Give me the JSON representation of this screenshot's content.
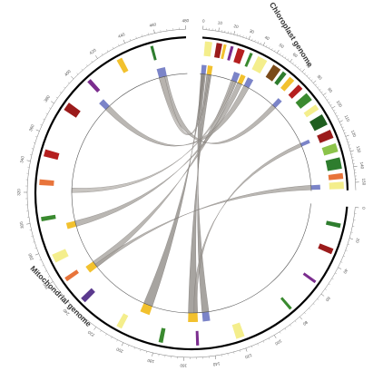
{
  "chart_data": {
    "type": "circos",
    "segments": [
      {
        "name": "Chloroplast genome",
        "length": 155,
        "color": "#000000",
        "ticks": [
          0,
          10,
          20,
          30,
          40,
          50,
          60,
          70,
          80,
          90,
          100,
          110,
          120,
          130,
          140,
          150
        ]
      },
      {
        "name": "Mitochondrial genome",
        "length": 480,
        "color": "#000000",
        "ticks": [
          0,
          20,
          40,
          60,
          80,
          100,
          120,
          140,
          160,
          180,
          200,
          220,
          240,
          260,
          280,
          300,
          320,
          340,
          360,
          380,
          400,
          420,
          440,
          460,
          480
        ]
      }
    ],
    "features": [
      {
        "segment": 0,
        "start": 2,
        "end": 7,
        "track": "outer",
        "color": "#f4ee8c"
      },
      {
        "segment": 0,
        "start": 10,
        "end": 14,
        "track": "outer",
        "color": "#9b1b1b"
      },
      {
        "segment": 0,
        "start": 15,
        "end": 17,
        "track": "outer",
        "color": "#f2c12e"
      },
      {
        "segment": 0,
        "start": 20,
        "end": 22,
        "track": "outer",
        "color": "#7b2d8e"
      },
      {
        "segment": 0,
        "start": 25,
        "end": 30,
        "track": "outer",
        "color": "#b51f1f"
      },
      {
        "segment": 0,
        "start": 34,
        "end": 36,
        "track": "outer",
        "color": "#3a8a2f"
      },
      {
        "segment": 0,
        "start": 40,
        "end": 47,
        "track": "outer",
        "color": "#f4ee8c"
      },
      {
        "segment": 0,
        "start": 52,
        "end": 58,
        "track": "outer",
        "color": "#7a4a18"
      },
      {
        "segment": 0,
        "start": 60,
        "end": 63,
        "track": "outer",
        "color": "#2e7d2e"
      },
      {
        "segment": 0,
        "start": 66,
        "end": 70,
        "track": "outer",
        "color": "#f2c12e"
      },
      {
        "segment": 0,
        "start": 74,
        "end": 78,
        "track": "outer",
        "color": "#b51f1f"
      },
      {
        "segment": 0,
        "start": 82,
        "end": 88,
        "track": "outer",
        "color": "#3a8a2f"
      },
      {
        "segment": 0,
        "start": 92,
        "end": 96,
        "track": "outer",
        "color": "#f4ee8c"
      },
      {
        "segment": 0,
        "start": 100,
        "end": 108,
        "track": "outer",
        "color": "#1f5f1f"
      },
      {
        "segment": 0,
        "start": 112,
        "end": 118,
        "track": "outer",
        "color": "#9b1b1b"
      },
      {
        "segment": 0,
        "start": 122,
        "end": 128,
        "track": "outer",
        "color": "#8bc34a"
      },
      {
        "segment": 0,
        "start": 132,
        "end": 140,
        "track": "outer",
        "color": "#2e7d2e"
      },
      {
        "segment": 0,
        "start": 143,
        "end": 147,
        "track": "outer",
        "color": "#e8743b"
      },
      {
        "segment": 0,
        "start": 149,
        "end": 154,
        "track": "outer",
        "color": "#f4ee8c"
      },
      {
        "segment": 1,
        "start": 12,
        "end": 15,
        "track": "outer",
        "color": "#2e7d2e"
      },
      {
        "segment": 1,
        "start": 30,
        "end": 34,
        "track": "outer",
        "color": "#9b1b1b"
      },
      {
        "segment": 1,
        "start": 55,
        "end": 57,
        "track": "outer",
        "color": "#7b2d8e"
      },
      {
        "segment": 1,
        "start": 80,
        "end": 82,
        "track": "outer",
        "color": "#3a8a2f"
      },
      {
        "segment": 1,
        "start": 118,
        "end": 124,
        "track": "outer",
        "color": "#f4ee8c"
      },
      {
        "segment": 1,
        "start": 150,
        "end": 152,
        "track": "outer",
        "color": "#7b2d8e"
      },
      {
        "segment": 1,
        "start": 175,
        "end": 178,
        "track": "outer",
        "color": "#3a8a2f"
      },
      {
        "segment": 1,
        "start": 205,
        "end": 209,
        "track": "outer",
        "color": "#f4ee8c"
      },
      {
        "segment": 1,
        "start": 236,
        "end": 240,
        "track": "outer",
        "color": "#5b3a8e"
      },
      {
        "segment": 1,
        "start": 255,
        "end": 258,
        "track": "outer",
        "color": "#e8743b"
      },
      {
        "segment": 1,
        "start": 270,
        "end": 276,
        "track": "outer",
        "color": "#f4ee8c"
      },
      {
        "segment": 1,
        "start": 300,
        "end": 303,
        "track": "outer",
        "color": "#3a8a2f"
      },
      {
        "segment": 1,
        "start": 325,
        "end": 329,
        "track": "outer",
        "color": "#e8743b"
      },
      {
        "segment": 1,
        "start": 345,
        "end": 350,
        "track": "outer",
        "color": "#b51f1f"
      },
      {
        "segment": 1,
        "start": 380,
        "end": 386,
        "track": "outer",
        "color": "#9b1b1b"
      },
      {
        "segment": 1,
        "start": 405,
        "end": 408,
        "track": "outer",
        "color": "#7b2d8e"
      },
      {
        "segment": 1,
        "start": 430,
        "end": 434,
        "track": "outer",
        "color": "#f2c12e"
      },
      {
        "segment": 1,
        "start": 455,
        "end": 457,
        "track": "outer",
        "color": "#2e7d2e"
      },
      {
        "segment": 0,
        "start": 1,
        "end": 5,
        "track": "inner",
        "color": "#7b84c8"
      },
      {
        "segment": 0,
        "start": 6,
        "end": 10,
        "track": "inner",
        "color": "#f2c12e"
      },
      {
        "segment": 0,
        "start": 28,
        "end": 33,
        "track": "inner",
        "color": "#7b84c8"
      },
      {
        "segment": 0,
        "start": 34,
        "end": 38,
        "track": "inner",
        "color": "#f2c12e"
      },
      {
        "segment": 0,
        "start": 40,
        "end": 45,
        "track": "inner",
        "color": "#7b84c8"
      },
      {
        "segment": 0,
        "start": 70,
        "end": 74,
        "track": "inner",
        "color": "#7b84c8"
      },
      {
        "segment": 0,
        "start": 112,
        "end": 115,
        "track": "inner",
        "color": "#7b84c8"
      },
      {
        "segment": 0,
        "start": 150,
        "end": 154,
        "track": "inner",
        "color": "#7b84c8"
      },
      {
        "segment": 1,
        "start": 140,
        "end": 146,
        "track": "inner",
        "color": "#7b84c8"
      },
      {
        "segment": 1,
        "start": 150,
        "end": 158,
        "track": "inner",
        "color": "#f2c12e"
      },
      {
        "segment": 1,
        "start": 190,
        "end": 198,
        "track": "inner",
        "color": "#f2c12e"
      },
      {
        "segment": 1,
        "start": 250,
        "end": 256,
        "track": "inner",
        "color": "#f2c12e"
      },
      {
        "segment": 1,
        "start": 290,
        "end": 295,
        "track": "inner",
        "color": "#f2c12e"
      },
      {
        "segment": 1,
        "start": 400,
        "end": 405,
        "track": "inner",
        "color": "#7b84c8"
      },
      {
        "segment": 1,
        "start": 455,
        "end": 462,
        "track": "inner",
        "color": "#7b84c8"
      }
    ],
    "links": [
      {
        "from": [
          0,
          1,
          5
        ],
        "to": [
          1,
          140,
          146
        ],
        "color": "#8a8580"
      },
      {
        "from": [
          0,
          6,
          10
        ],
        "to": [
          1,
          150,
          158
        ],
        "color": "#8a8580"
      },
      {
        "from": [
          0,
          2,
          4
        ],
        "to": [
          1,
          190,
          198
        ],
        "color": "#8a8580"
      },
      {
        "from": [
          0,
          28,
          33
        ],
        "to": [
          1,
          250,
          256
        ],
        "color": "#a39f9a"
      },
      {
        "from": [
          0,
          34,
          38
        ],
        "to": [
          1,
          290,
          295
        ],
        "color": "#a39f9a"
      },
      {
        "from": [
          0,
          40,
          45
        ],
        "to": [
          1,
          400,
          405
        ],
        "color": "#a39f9a"
      },
      {
        "from": [
          0,
          70,
          74
        ],
        "to": [
          1,
          455,
          462
        ],
        "color": "#a39f9a"
      },
      {
        "from": [
          0,
          112,
          115
        ],
        "to": [
          1,
          150,
          153
        ],
        "color": "#a39f9a"
      },
      {
        "from": [
          0,
          150,
          154
        ],
        "to": [
          1,
          250,
          253
        ],
        "color": "#a39f9a"
      },
      {
        "from": [
          0,
          30,
          32
        ],
        "to": [
          1,
          320,
          324
        ],
        "color": "#b5b1ac"
      },
      {
        "from": [
          0,
          8,
          9
        ],
        "to": [
          1,
          455,
          460
        ],
        "color": "#b5b1ac"
      }
    ]
  }
}
